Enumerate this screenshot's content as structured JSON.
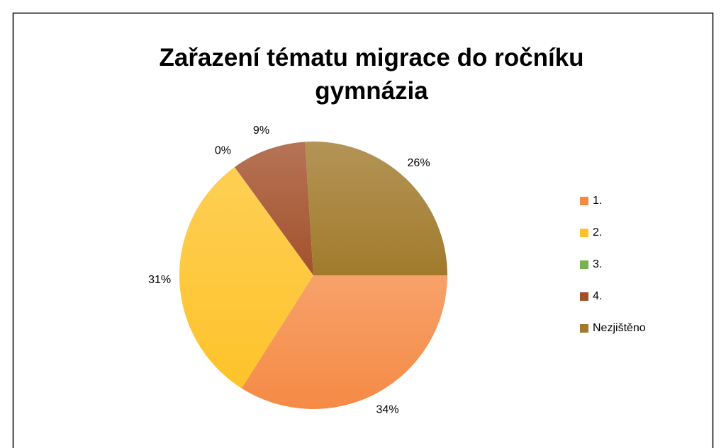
{
  "chart_data": {
    "type": "pie",
    "title": "Zařazení tématu migrace do ročníku gymnázia",
    "categories": [
      "1.",
      "2.",
      "3.",
      "4.",
      "Nezjištěno"
    ],
    "values": [
      34,
      31,
      0,
      9,
      26
    ],
    "value_labels": [
      "34%",
      "31%",
      "0%",
      "9%",
      "26%"
    ],
    "colors": [
      "#f58a45",
      "#fec32a",
      "#77b150",
      "#a3512c",
      "#a17a2c"
    ],
    "start_angle": 90,
    "legend": "right"
  }
}
